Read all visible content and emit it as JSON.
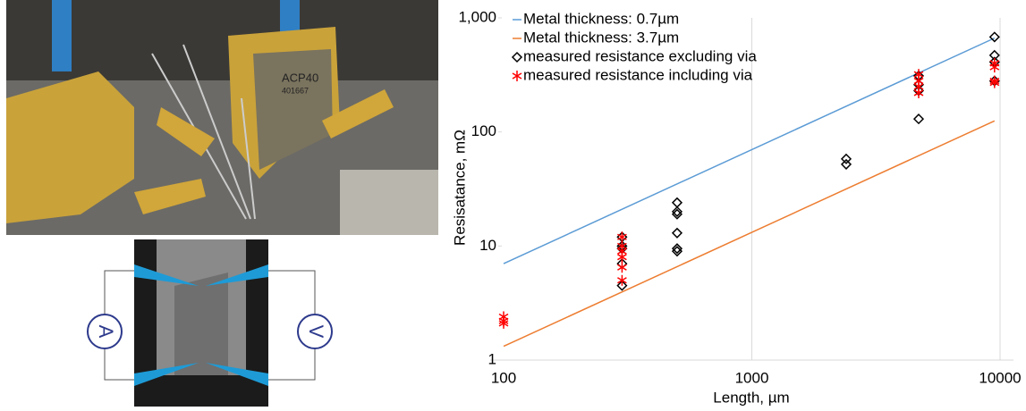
{
  "photo": {
    "labels": [
      "ACP40",
      "401667"
    ]
  },
  "diagram": {
    "ammeter": "A",
    "voltmeter": "V"
  },
  "chart_data": {
    "type": "scatter",
    "y_label": "Resisatance, mΩ",
    "x_label": "Length, µm",
    "xlog": true,
    "ylog": true,
    "xlim": [
      100,
      10000
    ],
    "ylim": [
      1,
      1000
    ],
    "xticks": [
      100,
      1000,
      10000
    ],
    "yticks": [
      1,
      10,
      100,
      {
        "value": 1000,
        "label": "1,000"
      }
    ],
    "grid_x": true,
    "legend": "top-left",
    "series": [
      {
        "name": "Metal thickness: 0.7µm",
        "color": "#5b9bd5",
        "style": "line",
        "x": [
          100,
          9500
        ],
        "values": [
          7,
          665
        ]
      },
      {
        "name": "Metal thickness: 3.7µm",
        "color": "#ed7d31",
        "style": "line",
        "x": [
          100,
          9500
        ],
        "values": [
          1.32,
          125
        ]
      },
      {
        "name": "measured resistance excluding via",
        "color": "#000000",
        "style": "diamond",
        "x": [
          300,
          300,
          300,
          300,
          300,
          500,
          500,
          500,
          500,
          500,
          500,
          2400,
          2400,
          4700,
          4700,
          4700,
          4700,
          9500,
          9500,
          9500,
          9500
        ],
        "values": [
          12,
          10,
          9.5,
          7,
          4.5,
          24,
          20,
          19,
          13,
          9.5,
          9,
          58,
          52,
          310,
          260,
          230,
          130,
          680,
          470,
          410,
          280
        ]
      },
      {
        "name": "measured resistance including via",
        "color": "#ff0000",
        "style": "asterisk",
        "x": [
          100,
          100,
          100,
          300,
          300,
          300,
          300,
          300,
          300,
          4700,
          4700,
          4700,
          4700,
          9500,
          9500,
          9500,
          9500
        ],
        "values": [
          2.4,
          2.2,
          2.1,
          12,
          10,
          9,
          8,
          6.5,
          5,
          320,
          280,
          250,
          220,
          400,
          370,
          280,
          270
        ]
      }
    ]
  }
}
